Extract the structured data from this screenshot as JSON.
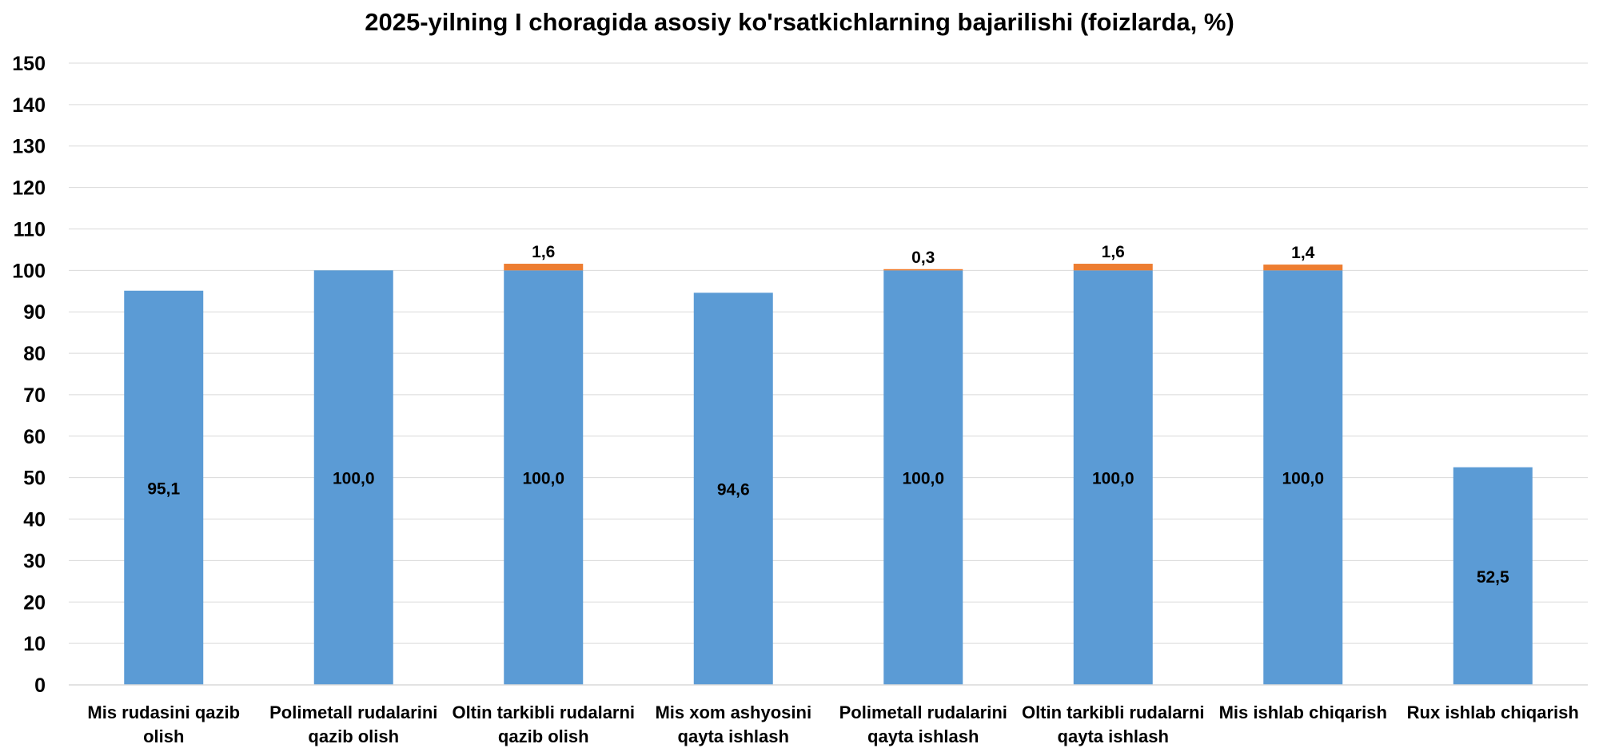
{
  "chart_data": {
    "type": "bar",
    "stacked": true,
    "title": "2025-yilning I choragida asosiy ko'rsatkichlarning bajarilishi (foizlarda, %)",
    "xlabel": "",
    "ylabel": "",
    "ylim": [
      0,
      150
    ],
    "ytick_step": 10,
    "grid": true,
    "legend": "none",
    "categories": [
      [
        "Mis rudasini qazib",
        "olish"
      ],
      [
        "Polimetall rudalarini",
        "qazib olish"
      ],
      [
        "Oltin tarkibli rudalarni",
        "qazib olish"
      ],
      [
        "Mis xom ashyosini",
        "qayta ishlash"
      ],
      [
        "Polimetall rudalarini",
        "qayta ishlash"
      ],
      [
        "Oltin tarkibli rudalarni",
        "qayta ishlash"
      ],
      [
        "Mis ishlab chiqarish"
      ],
      [
        "Rux ishlab chiqarish"
      ]
    ],
    "series": [
      {
        "color": "#5B9BD5",
        "values": [
          95.1,
          100.0,
          100.0,
          94.6,
          100.0,
          100.0,
          100.0,
          52.5
        ],
        "labels": [
          "95,1",
          "100,0",
          "100,0",
          "94,6",
          "100,0",
          "100,0",
          "100,0",
          "52,5"
        ]
      },
      {
        "color": "#ED7D31",
        "values": [
          0,
          0,
          1.6,
          0,
          0.3,
          1.6,
          1.4,
          0
        ],
        "labels": [
          "",
          "",
          "1,6",
          "",
          "0,3",
          "1,6",
          "1,4",
          ""
        ]
      }
    ]
  }
}
